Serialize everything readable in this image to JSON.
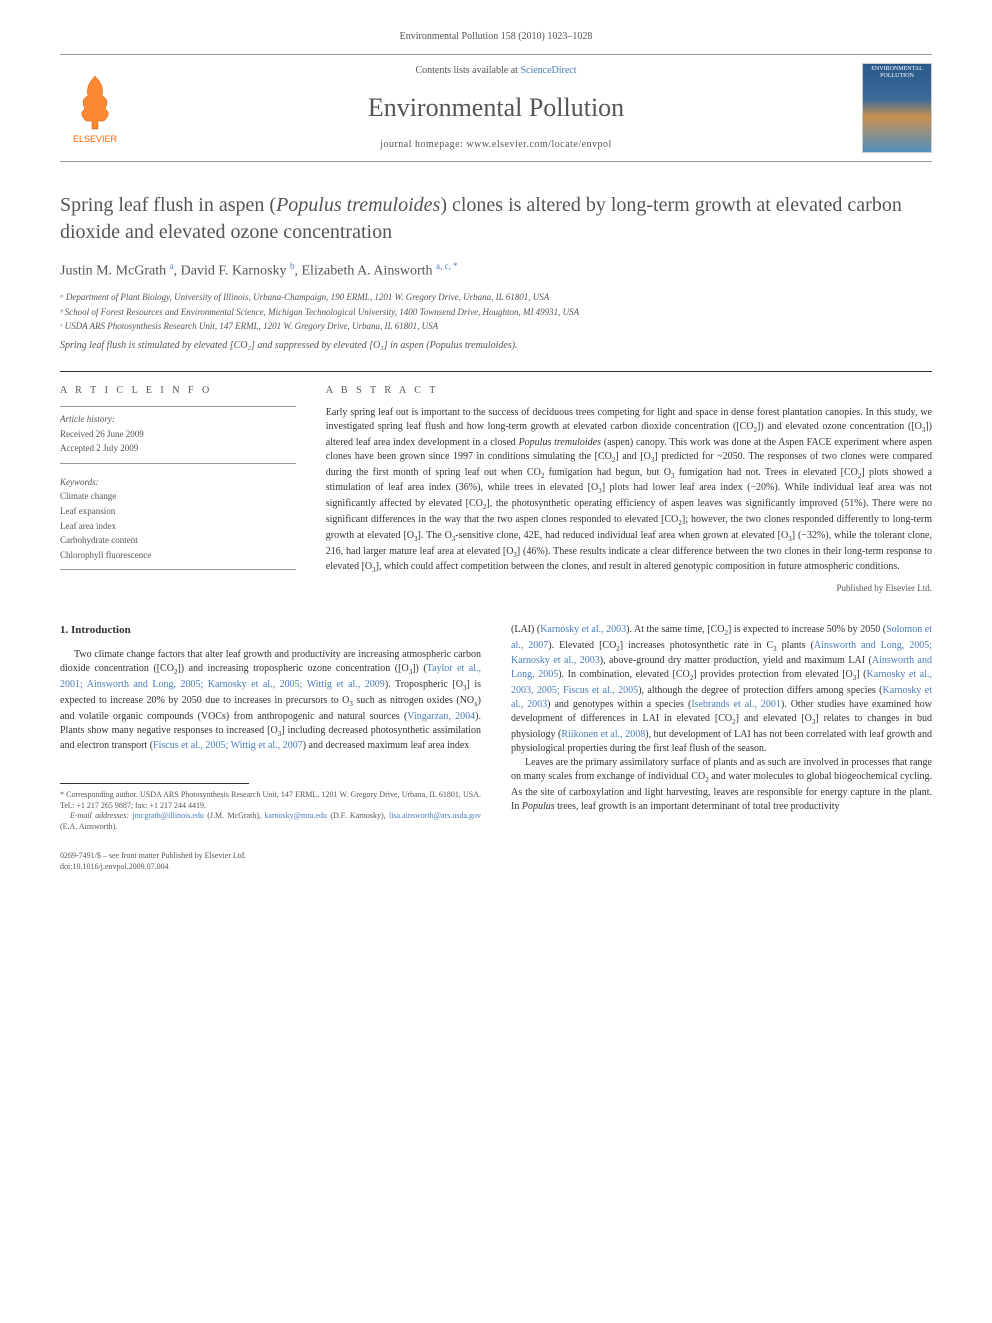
{
  "citation": "Environmental Pollution 158 (2010) 1023–1028",
  "banner": {
    "contents_prefix": "Contents lists available at ",
    "contents_link": "ScienceDirect",
    "journal": "Environmental Pollution",
    "homepage_prefix": "journal homepage: ",
    "homepage": "www.elsevier.com/locate/envpol",
    "publisher": "ELSEVIER",
    "cover_text": "ENVIRONMENTAL POLLUTION"
  },
  "title_html": "Spring leaf flush in aspen (<em>Populus tremuloides</em>) clones is altered by long-term growth at elevated carbon dioxide and elevated ozone concentration",
  "authors_html": "Justin M. McGrath <sup>a</sup>, David F. Karnosky <sup>b</sup>, Elizabeth A. Ainsworth <sup>a, c, *</sup>",
  "affiliations": [
    "ᵃ Department of Plant Biology, University of Illinois, Urbana-Champaign, 190 ERML, 1201 W. Gregory Drive, Urbana, IL 61801, USA",
    "ᵇ School of Forest Resources and Environmental Science, Michigan Technological University, 1400 Townsend Drive, Houghton, MI 49931, USA",
    "ᶜ USDA ARS Photosynthesis Research Unit, 147 ERML, 1201 W. Gregory Drive, Urbana, IL 61801, USA"
  ],
  "tagline": "Spring leaf flush is stimulated by elevated [CO₂] and suppressed by elevated [O₃] in aspen (Populus tremuloides).",
  "article_info": {
    "label": "A R T I C L E   I N F O",
    "history_label": "Article history:",
    "received": "Received 26 June 2009",
    "accepted": "Accepted 2 July 2009",
    "keywords_label": "Keywords:",
    "keywords": [
      "Climate change",
      "Leaf expansion",
      "Leaf area index",
      "Carbohydrate content",
      "Chlorophyll fluorescence"
    ]
  },
  "abstract": {
    "label": "A B S T R A C T",
    "text_html": "Early spring leaf out is important to the success of deciduous trees competing for light and space in dense forest plantation canopies. In this study, we investigated spring leaf flush and how long-term growth at elevated carbon dioxide concentration ([CO<sub>2</sub>]) and elevated ozone concentration ([O<sub>3</sub>]) altered leaf area index development in a closed <em>Populus tremuloides</em> (aspen) canopy. This work was done at the Aspen FACE experiment where aspen clones have been grown since 1997 in conditions simulating the [CO<sub>2</sub>] and [O<sub>3</sub>] predicted for ~2050. The responses of two clones were compared during the first month of spring leaf out when CO<sub>2</sub> fumigation had begun, but O<sub>3</sub> fumigation had not. Trees in elevated [CO<sub>2</sub>] plots showed a stimulation of leaf area index (36%), while trees in elevated [O<sub>3</sub>] plots had lower leaf area index (−20%). While individual leaf area was not significantly affected by elevated [CO<sub>2</sub>], the photosynthetic operating efficiency of aspen leaves was significantly improved (51%). There were no significant differences in the way that the two aspen clones responded to elevated [CO<sub>2</sub>]; however, the two clones responded differently to long-term growth at elevated [O<sub>3</sub>]. The O<sub>3</sub>-sensitive clone, 42E, had reduced individual leaf area when grown at elevated [O<sub>3</sub>] (−32%), while the tolerant clone, 216, had larger mature leaf area at elevated [O<sub>3</sub>] (46%). These results indicate a clear difference between the two clones in their long-term response to elevated [O<sub>3</sub>], which could affect competition between the clones, and result in altered genotypic composition in future atmospheric conditions.",
    "published_by": "Published by Elsevier Ltd."
  },
  "body": {
    "heading": "1. Introduction",
    "left_html": "Two climate change factors that alter leaf growth and productivity are increasing atmospheric carbon dioxide concentration ([CO<sub>2</sub>]) and increasing tropospheric ozone concentration ([O<sub>3</sub>]) (<a href='#'>Taylor et al., 2001; Ainsworth and Long, 2005; Karnosky et al., 2005; Wittig et al., 2009</a>). Tropospheric [O<sub>3</sub>] is expected to increase 20% by 2050 due to increases in precursors to O<sub>3</sub> such as nitrogen oxides (NO<sub>x</sub>) and volatile organic compounds (VOCs) from anthropogenic and natural sources (<a href='#'>Vingarzan, 2004</a>). Plants show many negative responses to increased [O<sub>3</sub>] including decreased photosynthetic assimilation and electron transport (<a href='#'>Fiscus et al., 2005; Wittig et al., 2007</a>) and decreased maximum leaf area index",
    "right_html_p1": "(LAI) (<a href='#'>Karnosky et al., 2003</a>). At the same time, [CO<sub>2</sub>] is expected to increase 50% by 2050 (<a href='#'>Solomon et al., 2007</a>). Elevated [CO<sub>2</sub>] increases photosynthetic rate in C<sub>3</sub> plants (<a href='#'>Ainsworth and Long, 2005; Karnosky et al., 2003</a>), above-ground dry matter production, yield and maximum LAI (<a href='#'>Ainsworth and Long, 2005</a>). In combination, elevated [CO<sub>2</sub>] provides protection from elevated [O<sub>3</sub>] (<a href='#'>Karnosky et al., 2003, 2005; Fiscus et al., 2005</a>), although the degree of protection differs among species (<a href='#'>Karnosky et al., 2003</a>) and genotypes within a species (<a href='#'>Isebrands et al., 2001</a>). Other studies have examined how development of differences in LAI in elevated [CO<sub>2</sub>] and elevated [O<sub>3</sub>] relates to changes in bud physiology (<a href='#'>Riikonen et al., 2008</a>), but development of LAI has not been correlated with leaf growth and physiological properties during the first leaf flush of the season.",
    "right_html_p2": "Leaves are the primary assimilatory surface of plants and as such are involved in processes that range on many scales from exchange of individual CO<sub>2</sub> and water molecules to global biogeochemical cycling. As the site of carboxylation and light harvesting, leaves are responsible for energy capture in the plant. In <em>Populus</em> trees, leaf growth is an important determinant of total tree productivity"
  },
  "footnote": {
    "corr_html": "* Corresponding author. USDA ARS Photosynthesis Research Unit, 147 ERML, 1201 W. Gregory Drive, Urbana, IL 61801, USA. Tel.: +1 217 265 9887; fax: +1 217 244 4419.",
    "emails_html": "<em>E-mail addresses:</em> <a href='#'>jmcgrath@illinois.edu</a> (J.M. McGrath), <a href='#'>karnosky@mtu.edu</a> (D.F. Karnosky), <a href='#'>lisa.ainsworth@ars.usda.gov</a> (E.A. Ainsworth)."
  },
  "bottom": {
    "line1": "0269-7491/$ – see front matter Published by Elsevier Ltd.",
    "line2": "doi:10.1016/j.envpol.2009.07.004"
  },
  "colors": {
    "link": "#4a7db8",
    "text": "#333333",
    "muted": "#555555",
    "elsevier_orange": "#ff6600"
  }
}
